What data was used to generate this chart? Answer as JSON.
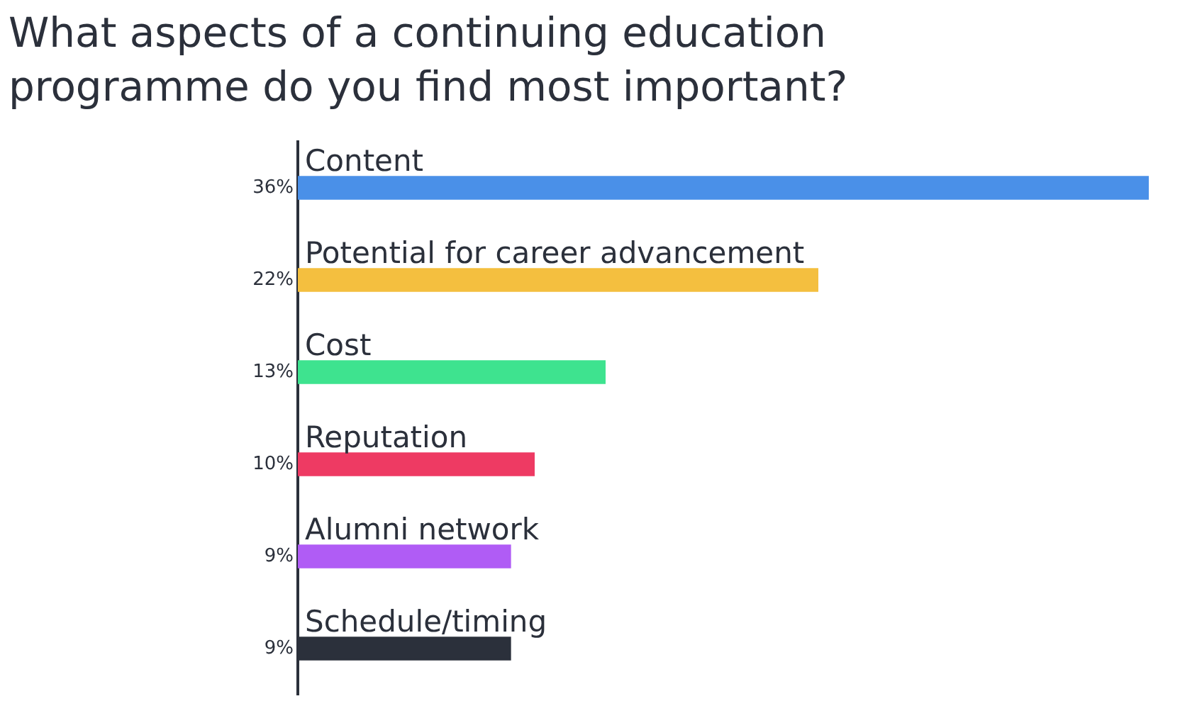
{
  "chart_data": {
    "type": "bar",
    "orientation": "horizontal",
    "title": "What aspects of a continuing education programme do you find most important?",
    "categories": [
      "Content",
      "Potential for career advancement",
      "Cost",
      "Reputation",
      "Alumni network",
      "Schedule/timing"
    ],
    "values": [
      36,
      22,
      13,
      10,
      9,
      9
    ],
    "colors": [
      "#4a90e8",
      "#f4bf3f",
      "#3ee38f",
      "#ee3a63",
      "#b05cf5",
      "#2b303b"
    ],
    "value_labels": [
      "36%",
      "22%",
      "13%",
      "10%",
      "9%",
      "9%"
    ],
    "grid": false,
    "legend": false
  }
}
